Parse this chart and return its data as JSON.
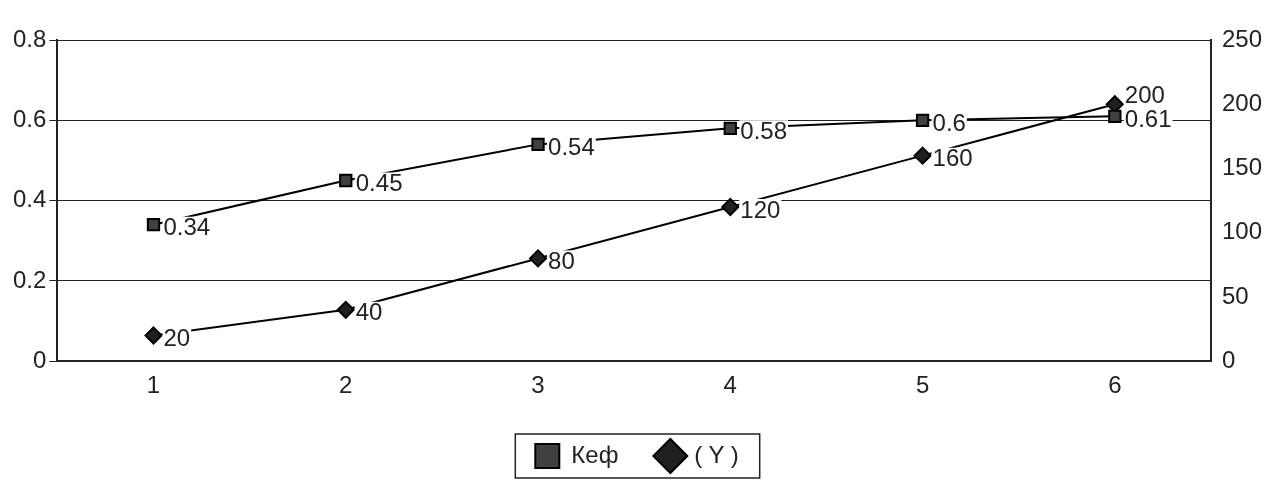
{
  "chart_data": {
    "type": "line",
    "categories": [
      "1",
      "2",
      "3",
      "4",
      "5",
      "6"
    ],
    "series": [
      {
        "name": "Кеф",
        "color": "#404040",
        "marker": "square",
        "values": [
          0.34,
          0.45,
          0.54,
          0.58,
          0.6,
          0.61
        ]
      },
      {
        "name": "( Y )",
        "color": "#202020",
        "marker": "diamond",
        "axis": "y2",
        "values": [
          20,
          40,
          80,
          120,
          160,
          200
        ]
      }
    ],
    "ylim": [
      0,
      0.8
    ],
    "yticks": [
      0,
      0.2,
      0.4,
      0.6,
      0.8
    ],
    "y2lim": [
      0,
      250
    ],
    "y2ticks": [
      0,
      50,
      100,
      150,
      200,
      250
    ],
    "grid": "y",
    "legend": "bottom",
    "data_labels": true
  }
}
